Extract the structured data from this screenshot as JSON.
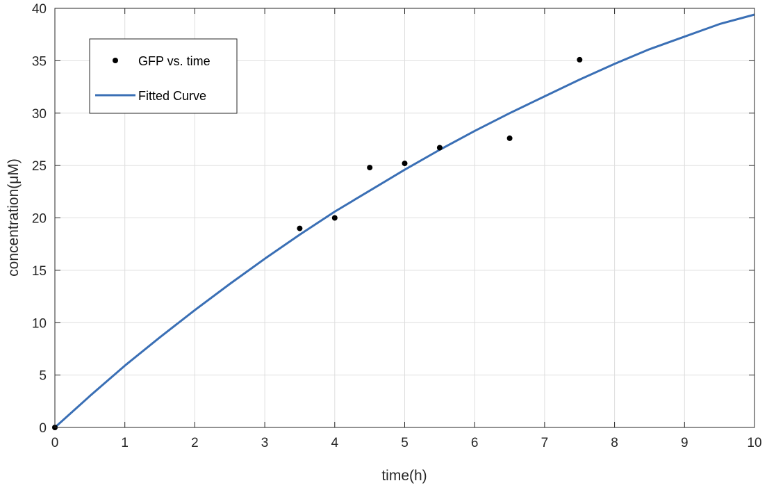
{
  "chart_data": {
    "type": "scatter",
    "title": "",
    "xlabel": "time(h)",
    "ylabel": "concentration(μM)",
    "xlim": [
      0,
      10
    ],
    "ylim": [
      0,
      40
    ],
    "xticks": [
      "0",
      "1",
      "2",
      "3",
      "4",
      "5",
      "6",
      "7",
      "8",
      "9",
      "10"
    ],
    "yticks": [
      "0",
      "5",
      "10",
      "15",
      "20",
      "25",
      "30",
      "35",
      "40"
    ],
    "grid": true,
    "legend_position": "top-left",
    "series": [
      {
        "name": "GFP vs. time",
        "kind": "points",
        "color": "#000000",
        "x": [
          0,
          3.5,
          4,
          4.5,
          5,
          5.5,
          6.5,
          7.5
        ],
        "y": [
          0,
          19,
          20,
          24.8,
          25.2,
          26.7,
          27.6,
          35.1
        ]
      },
      {
        "name": "Fitted Curve",
        "kind": "line",
        "color": "#3a6fb5",
        "x": [
          0,
          0.5,
          1,
          1.5,
          2,
          2.5,
          3,
          3.5,
          4,
          4.5,
          5,
          5.5,
          6,
          6.5,
          7,
          7.5,
          8,
          8.5,
          9,
          9.5,
          10
        ],
        "y": [
          0,
          3.0,
          5.9,
          8.6,
          11.2,
          13.7,
          16.1,
          18.4,
          20.6,
          22.6,
          24.6,
          26.5,
          28.3,
          30.0,
          31.6,
          33.2,
          34.7,
          36.1,
          37.3,
          38.5,
          39.4
        ]
      }
    ]
  }
}
